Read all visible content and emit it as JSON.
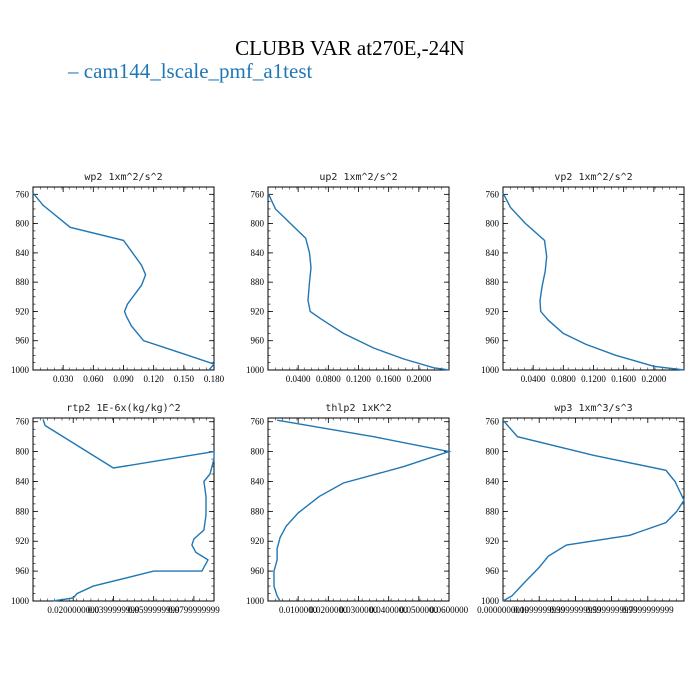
{
  "title": "CLUBB VAR at270E,-24N",
  "legend": {
    "label": "cam144_lscale_pmf_a1test",
    "color": "#2077b4"
  },
  "chart_data": [
    {
      "type": "line",
      "title": "wp2   1xm^2/s^2",
      "ylim": [
        1000,
        750
      ],
      "xlim": [
        0,
        0.18
      ],
      "yticks": [
        "760",
        "800",
        "840",
        "880",
        "920",
        "960",
        "1000"
      ],
      "xticks": [
        "0.030",
        "0.060",
        "0.090",
        "0.120",
        "0.150",
        "0.180"
      ],
      "x": [
        0.0,
        0.01,
        0.037,
        0.09,
        0.108,
        0.112,
        0.108,
        0.094,
        0.091,
        0.093,
        0.098,
        0.11,
        0.15,
        0.18,
        0.175
      ],
      "y": [
        758,
        775,
        805,
        823,
        857,
        870,
        884,
        910,
        920,
        927,
        940,
        960,
        978,
        992,
        1000
      ]
    },
    {
      "type": "line",
      "title": "up2   1xm^2/s^2",
      "ylim": [
        1000,
        750
      ],
      "xlim": [
        0,
        0.24
      ],
      "yticks": [
        "760",
        "800",
        "840",
        "880",
        "920",
        "960",
        "1000"
      ],
      "xticks": [
        "0.0400",
        "0.0800",
        "0.1200",
        "0.1600",
        "0.2000"
      ],
      "x": [
        0.0,
        0.01,
        0.03,
        0.05,
        0.055,
        0.057,
        0.055,
        0.053,
        0.056,
        0.07,
        0.1,
        0.14,
        0.18,
        0.22,
        0.24
      ],
      "y": [
        758,
        780,
        800,
        820,
        840,
        860,
        880,
        905,
        920,
        930,
        950,
        970,
        985,
        997,
        1000
      ]
    },
    {
      "type": "line",
      "title": "vp2   1xm^2/s^2",
      "ylim": [
        1000,
        750
      ],
      "xlim": [
        0,
        0.24
      ],
      "yticks": [
        "760",
        "800",
        "840",
        "880",
        "920",
        "960",
        "1000"
      ],
      "xticks": [
        "0.0400",
        "0.0800",
        "0.1200",
        "0.1600",
        "0.2000"
      ],
      "x": [
        0.0,
        0.01,
        0.03,
        0.055,
        0.058,
        0.056,
        0.052,
        0.049,
        0.05,
        0.06,
        0.08,
        0.11,
        0.15,
        0.2,
        0.24
      ],
      "y": [
        758,
        778,
        800,
        823,
        845,
        865,
        885,
        905,
        920,
        932,
        950,
        965,
        980,
        995,
        1000
      ]
    },
    {
      "type": "line",
      "title": "rtp2   1E-6x(kg/kg)^2",
      "ylim": [
        1000,
        755
      ],
      "xlim": [
        0,
        0.09
      ],
      "yticks": [
        "760",
        "800",
        "840",
        "880",
        "920",
        "960",
        "1000"
      ],
      "xticks": [
        "0.0200000000",
        "0.0399999999",
        "0.0599999999",
        "0.0799999999"
      ],
      "x": [
        0.005,
        0.006,
        0.04,
        0.09,
        0.09,
        0.088,
        0.085,
        0.086,
        0.086,
        0.085,
        0.08,
        0.079,
        0.081,
        0.087,
        0.084,
        0.06,
        0.03,
        0.022,
        0.02,
        0.01
      ],
      "y": [
        757,
        765,
        822,
        800,
        810,
        830,
        840,
        860,
        885,
        905,
        917,
        925,
        935,
        945,
        960,
        960,
        980,
        990,
        996,
        1000
      ]
    },
    {
      "type": "line",
      "title": "thlp2   1xK^2",
      "ylim": [
        1000,
        755
      ],
      "xlim": [
        0,
        0.06
      ],
      "yticks": [
        "760",
        "800",
        "840",
        "880",
        "920",
        "960",
        "1000"
      ],
      "xticks": [
        "0.0100000",
        "0.0200000",
        "0.0300000",
        "0.0400000",
        "0.0500000",
        "0.0600000"
      ],
      "x": [
        0.003,
        0.035,
        0.06,
        0.045,
        0.025,
        0.017,
        0.01,
        0.006,
        0.004,
        0.003,
        0.003,
        0.002,
        0.002,
        0.002,
        0.003,
        0.004
      ],
      "y": [
        758,
        780,
        800,
        820,
        842,
        860,
        882,
        900,
        915,
        930,
        945,
        960,
        970,
        980,
        993,
        1000
      ]
    },
    {
      "type": "line",
      "title": "wp3   1xm^3/s^3",
      "ylim": [
        1000,
        755
      ],
      "xlim": [
        0,
        1.0
      ],
      "yticks": [
        "760",
        "800",
        "840",
        "880",
        "920",
        "960",
        "1000"
      ],
      "xticks": [
        "0.0000000000",
        "0.1999999999",
        "0.3999999999",
        "0.5999999999",
        "0.7999999999"
      ],
      "x": [
        0.0,
        0.08,
        0.5,
        0.9,
        0.95,
        1.0,
        0.96,
        0.9,
        0.7,
        0.35,
        0.25,
        0.2,
        0.12,
        0.05,
        0.0
      ],
      "y": [
        758,
        780,
        805,
        825,
        840,
        865,
        880,
        895,
        912,
        925,
        940,
        955,
        975,
        993,
        1000
      ]
    }
  ]
}
